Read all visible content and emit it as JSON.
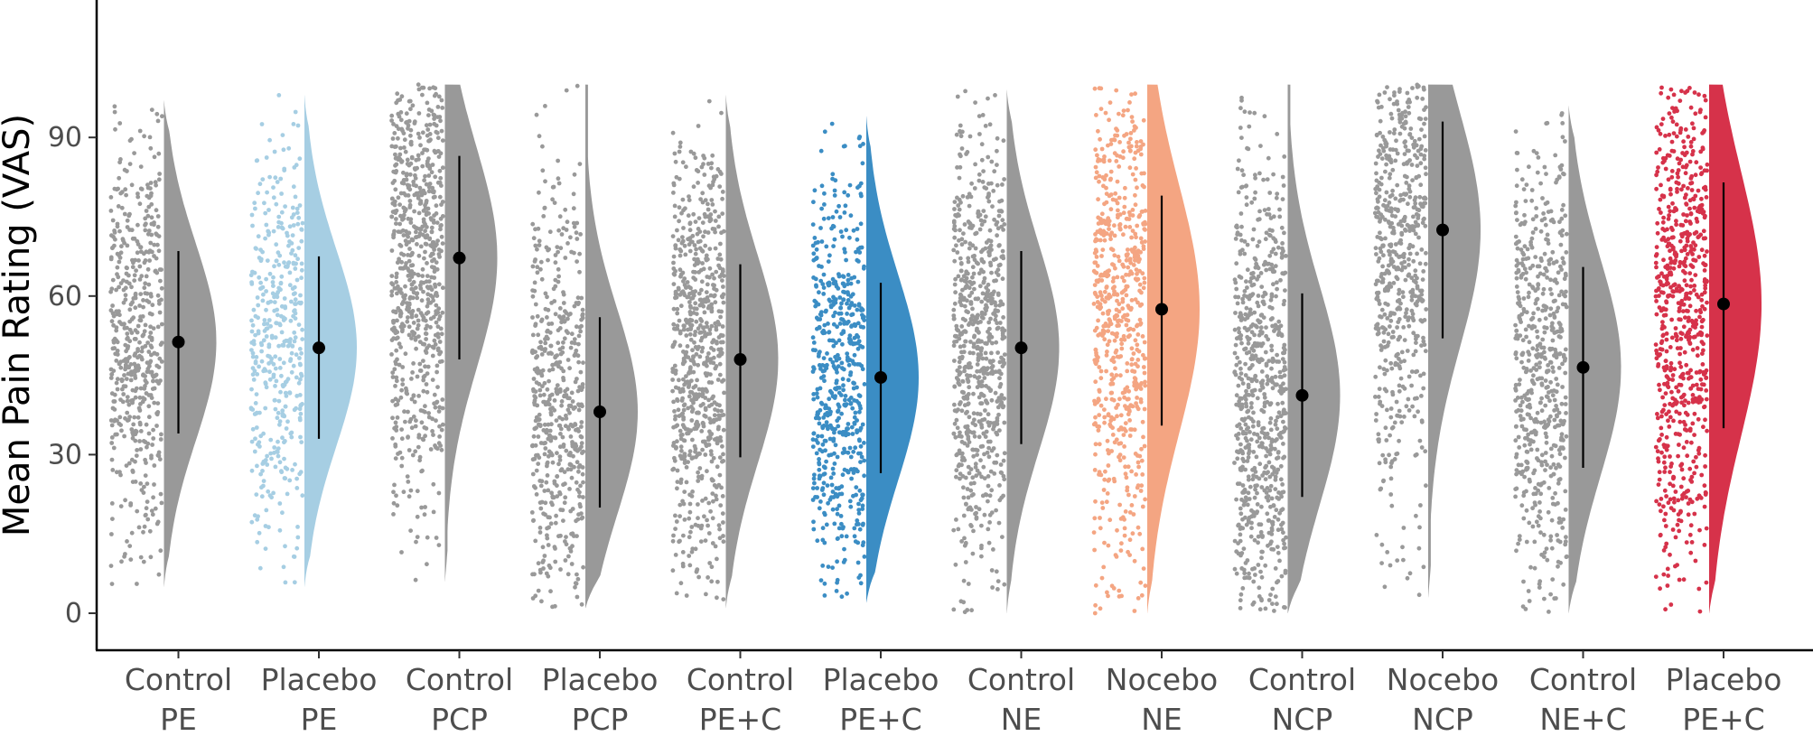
{
  "chart_data": {
    "type": "raincloud",
    "title": "",
    "xlabel": "",
    "ylabel": "Mean Pain Rating (VAS)",
    "ylim": [
      -7,
      116
    ],
    "yticks": [
      0,
      30,
      60,
      90
    ],
    "points_range": [
      0,
      100
    ],
    "categories": [
      {
        "line1": "Control",
        "line2": "PE",
        "color": "#999999",
        "mean": 51.3,
        "lower": 34.0,
        "upper": 68.5,
        "lo": 5,
        "hi": 97,
        "n": 520
      },
      {
        "line1": "Placebo",
        "line2": "PE",
        "color": "#A6CEE3",
        "mean": 50.2,
        "lower": 33.0,
        "upper": 67.5,
        "lo": 5,
        "hi": 98,
        "n": 420
      },
      {
        "line1": "Control",
        "line2": "PCP",
        "color": "#999999",
        "mean": 67.2,
        "lower": 48.0,
        "upper": 86.5,
        "lo": 6,
        "hi": 100,
        "n": 700
      },
      {
        "line1": "Placebo",
        "line2": "PCP",
        "color": "#999999",
        "mean": 38.1,
        "lower": 20.0,
        "upper": 56.0,
        "lo": 1,
        "hi": 100,
        "n": 520
      },
      {
        "line1": "Control",
        "line2": "PE+C",
        "color": "#999999",
        "mean": 48.0,
        "lower": 29.5,
        "upper": 66.0,
        "lo": 1,
        "hi": 98,
        "n": 700
      },
      {
        "line1": "Placebo",
        "line2": "PE+C",
        "color": "#3B8DC4",
        "mean": 44.6,
        "lower": 26.5,
        "upper": 62.5,
        "lo": 2,
        "hi": 94,
        "n": 560
      },
      {
        "line1": "Control",
        "line2": "NE",
        "color": "#999999",
        "mean": 50.2,
        "lower": 32.0,
        "upper": 68.5,
        "lo": 0,
        "hi": 99,
        "n": 700
      },
      {
        "line1": "Nocebo",
        "line2": "NE",
        "color": "#F4A582",
        "mean": 57.5,
        "lower": 35.5,
        "upper": 79.0,
        "lo": 0,
        "hi": 100,
        "n": 640
      },
      {
        "line1": "Control",
        "line2": "NCP",
        "color": "#999999",
        "mean": 41.2,
        "lower": 22.0,
        "upper": 60.5,
        "lo": 0,
        "hi": 100,
        "n": 700
      },
      {
        "line1": "Nocebo",
        "line2": "NCP",
        "color": "#999999",
        "mean": 72.5,
        "lower": 52.0,
        "upper": 93.0,
        "lo": 3,
        "hi": 100,
        "n": 580
      },
      {
        "line1": "Control",
        "line2": "NE+C",
        "color": "#999999",
        "mean": 46.5,
        "lower": 27.5,
        "upper": 65.5,
        "lo": 0,
        "hi": 96,
        "n": 580
      },
      {
        "line1": "Placebo",
        "line2": "PE+C",
        "color": "#D6324A",
        "mean": 58.5,
        "lower": 35.0,
        "upper": 81.5,
        "lo": 0,
        "hi": 100,
        "n": 700
      }
    ]
  }
}
